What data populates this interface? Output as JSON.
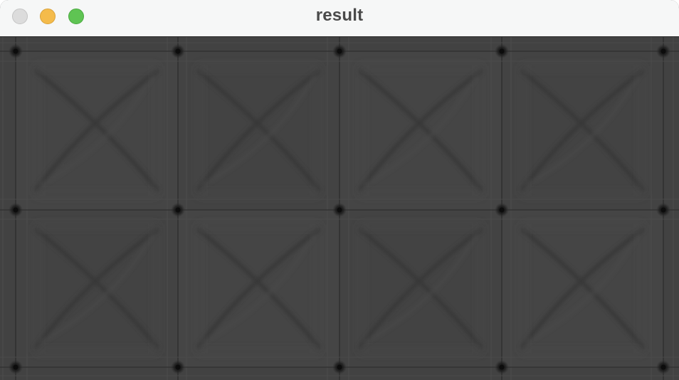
{
  "window": {
    "title": "result"
  },
  "image": {
    "description_icon": "result-image",
    "background_color": "#414141"
  }
}
